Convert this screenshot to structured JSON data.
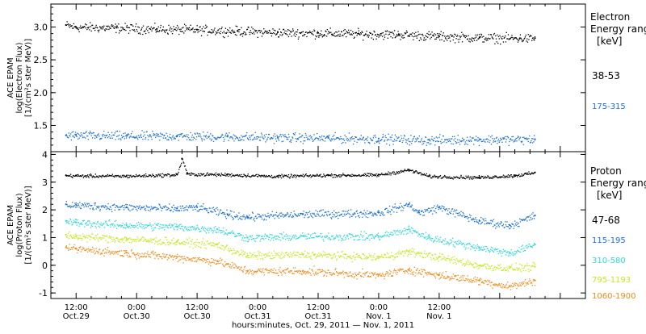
{
  "chart_data": [
    {
      "type": "scatter",
      "panel": "electron",
      "ylabel_lines": [
        "ACE EPAM",
        "log(Electron Flux)",
        "[1/(cm²s ster MeV)]"
      ],
      "ylim": [
        1.1,
        3.35
      ],
      "yticks": [
        1.5,
        2.0,
        2.5,
        3.0
      ],
      "ytick_labels": [
        "1.5",
        "2.0",
        "2.5",
        "3.0"
      ],
      "legend_title_lines": [
        "Electron",
        "Energy range",
        "[keV]"
      ],
      "series": [
        {
          "name": "38-53",
          "color": "#000000",
          "points": [
            [
              -2,
              3.03
            ],
            [
              0,
              3.0
            ],
            [
              8,
              2.99
            ],
            [
              16,
              2.97
            ],
            [
              24,
              2.96
            ],
            [
              32,
              2.94
            ],
            [
              40,
              2.92
            ],
            [
              48,
              2.91
            ],
            [
              56,
              2.9
            ],
            [
              64,
              2.89
            ],
            [
              72,
              2.86
            ],
            [
              80,
              2.84
            ],
            [
              88,
              2.83
            ],
            [
              91,
              2.83
            ]
          ]
        },
        {
          "name": "175-315",
          "color": "#1c6fd0",
          "points": [
            [
              -2,
              1.35
            ],
            [
              0,
              1.35
            ],
            [
              10,
              1.34
            ],
            [
              20,
              1.34
            ],
            [
              30,
              1.33
            ],
            [
              40,
              1.32
            ],
            [
              50,
              1.31
            ],
            [
              60,
              1.3
            ],
            [
              70,
              1.28
            ],
            [
              80,
              1.29
            ],
            [
              91,
              1.29
            ]
          ]
        }
      ]
    },
    {
      "type": "scatter",
      "panel": "proton",
      "ylabel_lines": [
        "ACE EPAM",
        "log(Proton Flux)",
        "[1/(cm²s ster MeV)]"
      ],
      "ylim": [
        -1.2,
        4.1
      ],
      "yticks": [
        -1,
        0,
        1,
        2,
        3,
        4
      ],
      "ytick_labels": [
        "-1",
        "0",
        "1",
        "2",
        "3",
        "4"
      ],
      "legend_title_lines": [
        "Proton",
        "Energy range",
        "[keV]"
      ],
      "series": [
        {
          "name": "47-68",
          "color": "#000000",
          "points": [
            [
              -2,
              3.25
            ],
            [
              0,
              3.24
            ],
            [
              10,
              3.23
            ],
            [
              20,
              3.28
            ],
            [
              21,
              3.85
            ],
            [
              22,
              3.3
            ],
            [
              30,
              3.28
            ],
            [
              40,
              3.22
            ],
            [
              50,
              3.26
            ],
            [
              60,
              3.27
            ],
            [
              66,
              3.45
            ],
            [
              70,
              3.22
            ],
            [
              80,
              3.18
            ],
            [
              87,
              3.25
            ],
            [
              91,
              3.35
            ]
          ]
        },
        {
          "name": "115-195",
          "color": "#1c6fd0",
          "points": [
            [
              -2,
              2.2
            ],
            [
              0,
              2.18
            ],
            [
              10,
              2.1
            ],
            [
              20,
              2.05
            ],
            [
              24,
              2.1
            ],
            [
              30,
              1.85
            ],
            [
              34,
              1.75
            ],
            [
              45,
              1.85
            ],
            [
              60,
              1.9
            ],
            [
              66,
              2.2
            ],
            [
              68,
              1.9
            ],
            [
              72,
              2.1
            ],
            [
              80,
              1.6
            ],
            [
              86,
              1.45
            ],
            [
              91,
              1.8
            ]
          ]
        },
        {
          "name": "310-580",
          "color": "#2fd6d6",
          "points": [
            [
              -2,
              1.6
            ],
            [
              0,
              1.55
            ],
            [
              10,
              1.45
            ],
            [
              20,
              1.4
            ],
            [
              28,
              1.3
            ],
            [
              34,
              1.0
            ],
            [
              45,
              1.05
            ],
            [
              60,
              1.05
            ],
            [
              66,
              1.3
            ],
            [
              70,
              1.0
            ],
            [
              80,
              0.65
            ],
            [
              86,
              0.45
            ],
            [
              91,
              0.75
            ]
          ]
        },
        {
          "name": "795-1193",
          "color": "#c8e622",
          "points": [
            [
              -2,
              1.1
            ],
            [
              0,
              1.05
            ],
            [
              10,
              0.95
            ],
            [
              20,
              0.85
            ],
            [
              28,
              0.75
            ],
            [
              34,
              0.35
            ],
            [
              45,
              0.4
            ],
            [
              60,
              0.3
            ],
            [
              66,
              0.5
            ],
            [
              72,
              0.3
            ],
            [
              80,
              0.0
            ],
            [
              86,
              -0.1
            ],
            [
              91,
              -0.05
            ]
          ]
        },
        {
          "name": "1060-1900",
          "color": "#ee8a1a",
          "points": [
            [
              -2,
              0.65
            ],
            [
              0,
              0.6
            ],
            [
              10,
              0.45
            ],
            [
              20,
              0.3
            ],
            [
              28,
              0.15
            ],
            [
              34,
              -0.2
            ],
            [
              45,
              -0.2
            ],
            [
              60,
              -0.35
            ],
            [
              66,
              -0.15
            ],
            [
              72,
              -0.35
            ],
            [
              80,
              -0.55
            ],
            [
              86,
              -0.75
            ],
            [
              91,
              -0.55
            ]
          ]
        }
      ]
    }
  ],
  "x_axis": {
    "xlim": [
      -5,
      101
    ],
    "major_ticks": [
      0,
      12,
      24,
      36,
      48,
      60,
      72,
      84,
      96
    ],
    "tick_labels_line1": [
      "12:00",
      "0:00",
      "12:00",
      "0:00",
      "12:00",
      "0:00",
      "12:00"
    ],
    "tick_labels_line2": [
      "Oct.29",
      "Oct.30",
      "Oct.30",
      "Oct.31",
      "Oct.31",
      "Nov. 1",
      "Nov. 1"
    ],
    "label_positions": [
      0,
      12,
      24,
      36,
      48,
      60,
      72
    ],
    "xlabel": "hours:minutes, Oct. 29, 2011 — Nov. 1, 2011"
  }
}
